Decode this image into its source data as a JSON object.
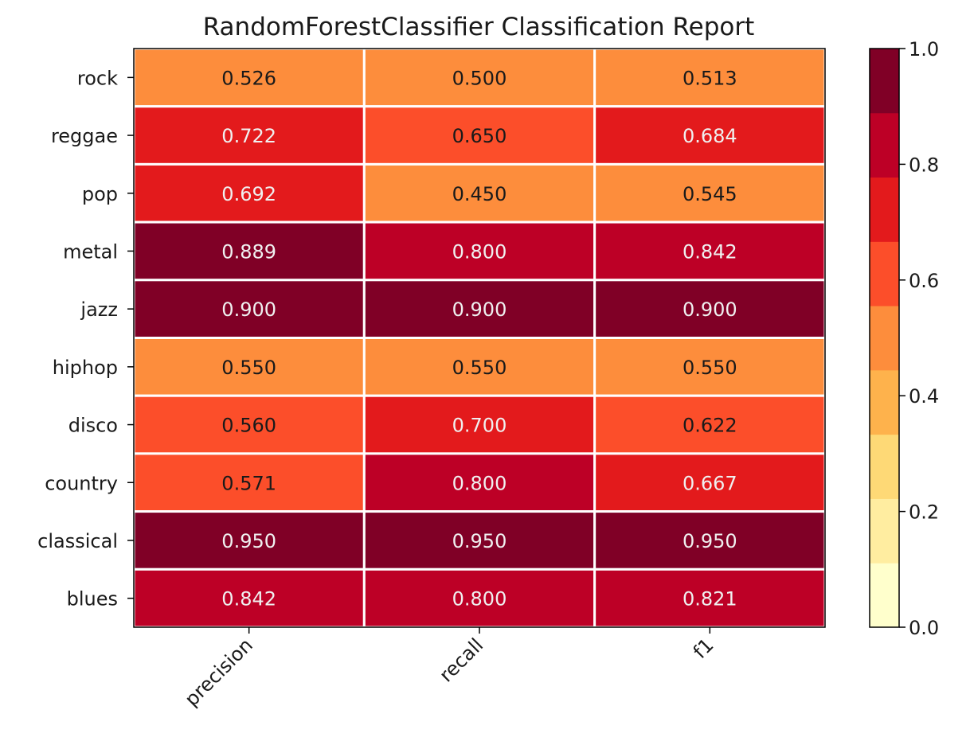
{
  "chart_data": {
    "type": "heatmap",
    "title": "RandomForestClassifier Classification Report",
    "columns": [
      "precision",
      "recall",
      "f1"
    ],
    "rows": [
      "rock",
      "reggae",
      "pop",
      "metal",
      "jazz",
      "hiphop",
      "disco",
      "country",
      "classical",
      "blues"
    ],
    "values": [
      [
        0.526,
        0.5,
        0.513
      ],
      [
        0.722,
        0.65,
        0.684
      ],
      [
        0.692,
        0.45,
        0.545
      ],
      [
        0.889,
        0.8,
        0.842
      ],
      [
        0.9,
        0.9,
        0.9
      ],
      [
        0.55,
        0.55,
        0.55
      ],
      [
        0.56,
        0.7,
        0.622
      ],
      [
        0.571,
        0.8,
        0.667
      ],
      [
        0.95,
        0.95,
        0.95
      ],
      [
        0.842,
        0.8,
        0.821
      ]
    ],
    "cell_labels": [
      [
        "0.526",
        "0.500",
        "0.513"
      ],
      [
        "0.722",
        "0.650",
        "0.684"
      ],
      [
        "0.692",
        "0.450",
        "0.545"
      ],
      [
        "0.889",
        "0.800",
        "0.842"
      ],
      [
        "0.900",
        "0.900",
        "0.900"
      ],
      [
        "0.550",
        "0.550",
        "0.550"
      ],
      [
        "0.560",
        "0.700",
        "0.622"
      ],
      [
        "0.571",
        "0.800",
        "0.667"
      ],
      [
        "0.950",
        "0.950",
        "0.950"
      ],
      [
        "0.842",
        "0.800",
        "0.821"
      ]
    ],
    "colorbar": {
      "range": [
        0,
        1
      ],
      "ticks": [
        "0.0",
        "0.2",
        "0.4",
        "0.6",
        "0.8",
        "1.0"
      ],
      "colormap": "YlOrRd",
      "bins": 9,
      "colors": [
        "#ffffcc",
        "#ffeda0",
        "#fed976",
        "#feb24c",
        "#fd8d3c",
        "#fc4e2a",
        "#e31a1c",
        "#bd0026",
        "#800026"
      ]
    },
    "grid": false
  }
}
